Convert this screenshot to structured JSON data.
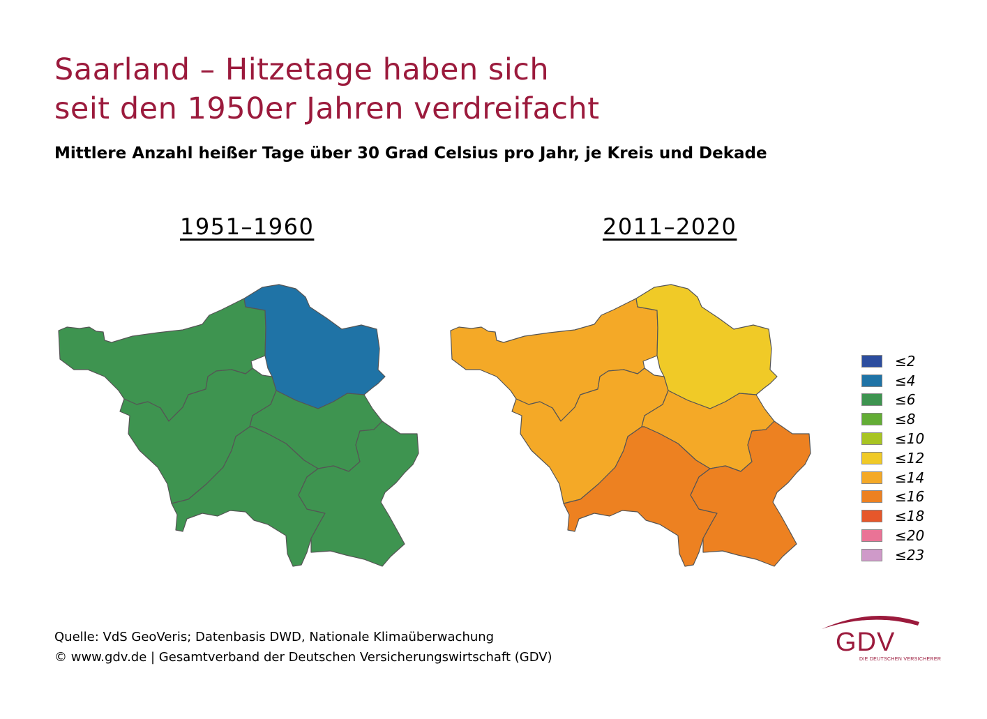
{
  "title": {
    "line1": "Saarland – Hitzetage haben sich",
    "line2": "seit den 1950er Jahren verdreifacht"
  },
  "subtitle": "Mittlere Anzahl heißer Tage über 30 Grad Celsius pro Jahr, je Kreis und Dekade",
  "maps": [
    {
      "period": "1951–1960",
      "districts": [
        {
          "id": "merzig-wadern",
          "class": "≤6",
          "color": "#3e9450"
        },
        {
          "id": "st-wendel",
          "class": "≤4",
          "color": "#1f73a6"
        },
        {
          "id": "saarlouis",
          "class": "≤6",
          "color": "#3e9450"
        },
        {
          "id": "neunkirchen",
          "class": "≤6",
          "color": "#3e9450"
        },
        {
          "id": "regionalverband-saarbruecken",
          "class": "≤6",
          "color": "#3e9450"
        },
        {
          "id": "saarpfalz-kreis",
          "class": "≤6",
          "color": "#3e9450"
        }
      ]
    },
    {
      "period": "2011–2020",
      "districts": [
        {
          "id": "merzig-wadern",
          "class": "≤14",
          "color": "#f4a927"
        },
        {
          "id": "st-wendel",
          "class": "≤12",
          "color": "#f0ca27"
        },
        {
          "id": "saarlouis",
          "class": "≤14",
          "color": "#f4a927"
        },
        {
          "id": "neunkirchen",
          "class": "≤14",
          "color": "#f4a927"
        },
        {
          "id": "regionalverband-saarbruecken",
          "class": "≤16",
          "color": "#ed8121"
        },
        {
          "id": "saarpfalz-kreis",
          "class": "≤16",
          "color": "#ed8121"
        }
      ]
    }
  ],
  "legend": [
    {
      "label": "≤2",
      "color": "#2c4d9e"
    },
    {
      "label": "≤4",
      "color": "#1f73a6"
    },
    {
      "label": "≤6",
      "color": "#3e9450"
    },
    {
      "label": "≤8",
      "color": "#63ad35"
    },
    {
      "label": "≤10",
      "color": "#a8c423"
    },
    {
      "label": "≤12",
      "color": "#f0ca27"
    },
    {
      "label": "≤14",
      "color": "#f4a927"
    },
    {
      "label": "≤16",
      "color": "#ed8121"
    },
    {
      "label": "≤18",
      "color": "#e6572a"
    },
    {
      "label": "≤20",
      "color": "#ea7396"
    },
    {
      "label": "≤23",
      "color": "#cf9ac9"
    }
  ],
  "source": {
    "line1": "Quelle: VdS GeoVeris; Datenbasis DWD, Nationale Klimaüberwachung",
    "line2": "© www.gdv.de | Gesamtverband der Deutschen Versicherungswirtschaft (GDV)"
  },
  "logo": {
    "text": "GDV",
    "subtext": "DIE DEUTSCHEN VERSICHERER",
    "color": "#9b1a3c"
  }
}
